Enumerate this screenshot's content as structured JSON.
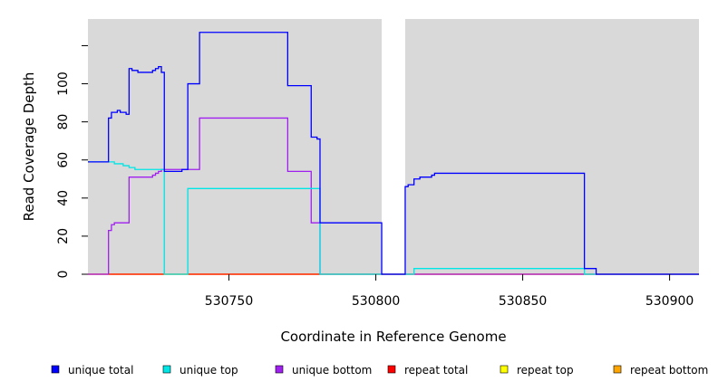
{
  "chart_data": {
    "type": "line",
    "xlabel": "Coordinate in Reference Genome",
    "ylabel": "Read Coverage Depth",
    "xlim": [
      530702,
      530910
    ],
    "ylim": [
      0,
      134
    ],
    "x_ticks": [
      530750,
      530800,
      530850,
      530900
    ],
    "y_ticks": [
      0,
      20,
      40,
      60,
      80,
      100
    ],
    "background": "#d9d9d9",
    "gaps": [
      [
        530802,
        530810
      ]
    ],
    "legend_placement": "bottom",
    "series": [
      {
        "name": "unique total",
        "color": "#0000ff",
        "points": [
          [
            530702,
            59
          ],
          [
            530709,
            59
          ],
          [
            530709,
            82
          ],
          [
            530710,
            82
          ],
          [
            530710,
            85
          ],
          [
            530712,
            85
          ],
          [
            530712,
            86
          ],
          [
            530713,
            86
          ],
          [
            530713,
            85
          ],
          [
            530715,
            85
          ],
          [
            530715,
            84
          ],
          [
            530716,
            84
          ],
          [
            530716,
            108
          ],
          [
            530717,
            108
          ],
          [
            530717,
            107
          ],
          [
            530719,
            107
          ],
          [
            530719,
            106
          ],
          [
            530724,
            106
          ],
          [
            530724,
            107
          ],
          [
            530725,
            107
          ],
          [
            530725,
            108
          ],
          [
            530726,
            108
          ],
          [
            530726,
            109
          ],
          [
            530727,
            109
          ],
          [
            530727,
            106
          ],
          [
            530728,
            106
          ],
          [
            530728,
            54
          ],
          [
            530734,
            54
          ],
          [
            530734,
            55
          ],
          [
            530736,
            55
          ],
          [
            530736,
            100
          ],
          [
            530740,
            100
          ],
          [
            530740,
            127
          ],
          [
            530770,
            127
          ],
          [
            530770,
            99
          ],
          [
            530778,
            99
          ],
          [
            530778,
            72
          ],
          [
            530780,
            72
          ],
          [
            530780,
            71
          ],
          [
            530781,
            71
          ],
          [
            530781,
            27
          ],
          [
            530802,
            27
          ],
          [
            530802,
            0
          ],
          [
            530810,
            0
          ],
          [
            530810,
            46
          ],
          [
            530811,
            46
          ],
          [
            530811,
            47
          ],
          [
            530813,
            47
          ],
          [
            530813,
            50
          ],
          [
            530815,
            50
          ],
          [
            530815,
            51
          ],
          [
            530819,
            51
          ],
          [
            530819,
            52
          ],
          [
            530820,
            52
          ],
          [
            530820,
            53
          ],
          [
            530871,
            53
          ],
          [
            530871,
            3
          ],
          [
            530875,
            3
          ],
          [
            530875,
            0
          ],
          [
            530910,
            0
          ]
        ]
      },
      {
        "name": "unique top",
        "color": "#00e5e5",
        "points": [
          [
            530702,
            59
          ],
          [
            530711,
            59
          ],
          [
            530711,
            58
          ],
          [
            530714,
            58
          ],
          [
            530714,
            57
          ],
          [
            530716,
            57
          ],
          [
            530716,
            56
          ],
          [
            530718,
            56
          ],
          [
            530718,
            55
          ],
          [
            530728,
            55
          ],
          [
            530728,
            0
          ],
          [
            530736,
            0
          ],
          [
            530736,
            45
          ],
          [
            530781,
            45
          ],
          [
            530781,
            0
          ],
          [
            530813,
            0
          ],
          [
            530813,
            3
          ],
          [
            530871,
            3
          ],
          [
            530871,
            0
          ],
          [
            530910,
            0
          ]
        ]
      },
      {
        "name": "unique bottom",
        "color": "#a020f0",
        "points": [
          [
            530702,
            0
          ],
          [
            530709,
            0
          ],
          [
            530709,
            23
          ],
          [
            530710,
            23
          ],
          [
            530710,
            26
          ],
          [
            530711,
            26
          ],
          [
            530711,
            27
          ],
          [
            530716,
            27
          ],
          [
            530716,
            51
          ],
          [
            530724,
            51
          ],
          [
            530724,
            52
          ],
          [
            530725,
            52
          ],
          [
            530725,
            53
          ],
          [
            530726,
            53
          ],
          [
            530726,
            54
          ],
          [
            530727,
            54
          ],
          [
            530727,
            55
          ],
          [
            530740,
            55
          ],
          [
            530740,
            82
          ],
          [
            530770,
            82
          ],
          [
            530770,
            54
          ],
          [
            530778,
            54
          ],
          [
            530778,
            27
          ],
          [
            530781,
            27
          ],
          [
            530781,
            0
          ],
          [
            530910,
            0
          ]
        ]
      },
      {
        "name": "repeat total",
        "color": "#ff0000",
        "points": [
          [
            530702,
            0
          ],
          [
            530910,
            0
          ]
        ]
      },
      {
        "name": "repeat top",
        "color": "#ffff00",
        "points": [
          [
            530702,
            0
          ],
          [
            530910,
            0
          ]
        ]
      },
      {
        "name": "repeat bottom",
        "color": "#ffa500",
        "points": [
          [
            530702,
            0
          ],
          [
            530910,
            0
          ]
        ]
      }
    ]
  }
}
